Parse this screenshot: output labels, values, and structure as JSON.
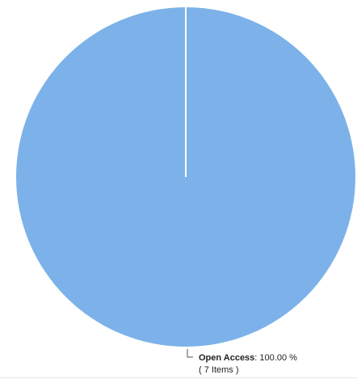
{
  "chart_data": {
    "type": "pie",
    "slices": [
      {
        "name": "Open Access",
        "percent_text": "100.00 %",
        "count_text": "( 7 Items )",
        "value": 7,
        "percent": 100.0,
        "color": "#7cb2e9"
      }
    ],
    "legend": "none"
  }
}
